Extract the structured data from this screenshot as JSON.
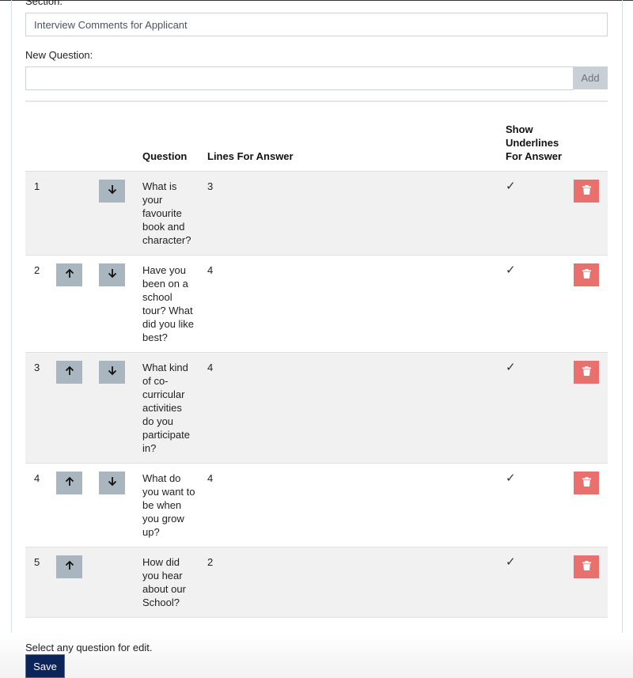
{
  "section": {
    "label": "Section:",
    "value": "Interview Comments for Applicant"
  },
  "new_question": {
    "label": "New Question:",
    "value": "",
    "add_label": "Add"
  },
  "table": {
    "headers": {
      "num": "",
      "up": "",
      "down": "",
      "question": "Question",
      "lines": "Lines For Answer",
      "underlines": "Show Underlines For Answer",
      "delete": ""
    },
    "rows": [
      {
        "num": "1",
        "question": "What is your favourite book and character?",
        "lines": "3",
        "underline": "✓",
        "up": false,
        "down": true
      },
      {
        "num": "2",
        "question": "Have you been on a school tour? What did you like best?",
        "lines": "4",
        "underline": "✓",
        "up": true,
        "down": true
      },
      {
        "num": "3",
        "question": "What kind of co-curricular activities do you participate in?",
        "lines": "4",
        "underline": "✓",
        "up": true,
        "down": true
      },
      {
        "num": "4",
        "question": "What do you want to be when you grow up?",
        "lines": "4",
        "underline": "✓",
        "up": true,
        "down": true
      },
      {
        "num": "5",
        "question": "How did you hear about our School?",
        "lines": "2",
        "underline": "✓",
        "up": true,
        "down": false
      }
    ]
  },
  "hint": "Select any question for edit.",
  "save_label": "Save",
  "colors": {
    "delete": "#e8716d",
    "move": "#a9b6bf",
    "save": "#0b245a"
  }
}
